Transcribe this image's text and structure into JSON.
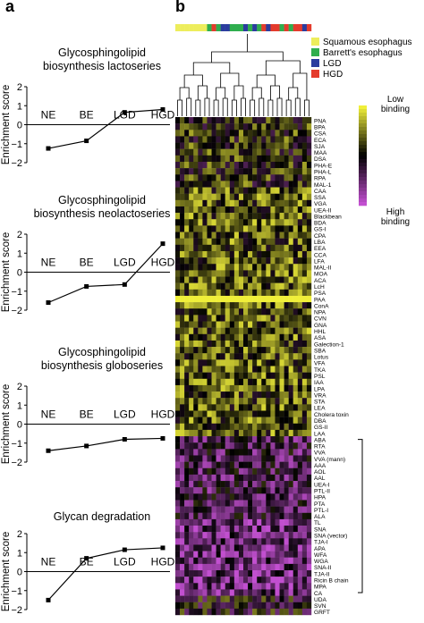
{
  "panel_a_label": "a",
  "panel_b_label": "b",
  "chart_data": [
    {
      "type": "line",
      "title": "Glycosphingolipid biosynthesis lactoseries",
      "title_lines": [
        "Glycosphingolipid",
        "biosynthesis lactoseries"
      ],
      "categories": [
        "NE",
        "BE",
        "LGD",
        "HGD"
      ],
      "values": [
        -1.25,
        -0.85,
        0.65,
        0.8
      ],
      "ylabel": "Enrichment score",
      "ylim": [
        -2,
        2
      ],
      "yticks": [
        "2",
        "1",
        "0",
        "−1",
        "−2"
      ]
    },
    {
      "type": "line",
      "title": "Glycosphingolipid biosynthesis neolactoseries",
      "title_lines": [
        "Glycosphingolipid",
        "biosynthesis neolactoseries"
      ],
      "categories": [
        "NE",
        "BE",
        "LGD",
        "HGD"
      ],
      "values": [
        -1.6,
        -0.75,
        -0.65,
        1.5
      ],
      "ylabel": "Enrichment score",
      "ylim": [
        -2,
        2
      ],
      "yticks": [
        "2",
        "1",
        "0",
        "−1",
        "−2"
      ]
    },
    {
      "type": "line",
      "title": "Glycosphingolipid biosynthesis globoseries",
      "title_lines": [
        "Glycosphingolipid",
        "biosynthesis globoseries"
      ],
      "categories": [
        "NE",
        "BE",
        "LGD",
        "HGD"
      ],
      "values": [
        -1.4,
        -1.15,
        -0.8,
        -0.75
      ],
      "ylabel": "Enrichment score",
      "ylim": [
        -2,
        2
      ],
      "yticks": [
        "2",
        "1",
        "0",
        "−1",
        "−2"
      ]
    },
    {
      "type": "line",
      "title": "Glycan degradation",
      "title_lines": [
        "Glycan degradation"
      ],
      "categories": [
        "NE",
        "BE",
        "LGD",
        "HGD"
      ],
      "values": [
        -1.5,
        0.7,
        1.15,
        1.25
      ],
      "ylabel": "Enrichment score",
      "ylim": [
        -2,
        2
      ],
      "yticks": [
        "2",
        "1",
        "0",
        "−1",
        "−2"
      ]
    },
    {
      "type": "heatmap",
      "legend": [
        {
          "label": "Squamous esophagus",
          "color": "#eded5c"
        },
        {
          "label": "Barrett's esophagus",
          "color": "#2fae4e"
        },
        {
          "label": "LGD",
          "color": "#2b3c9e"
        },
        {
          "label": "HGD",
          "color": "#e43b2c"
        }
      ],
      "scale_low": [
        "Low",
        "binding"
      ],
      "scale_high": [
        "High",
        "binding"
      ],
      "sample_groups": [
        0,
        0,
        0,
        0,
        0,
        0,
        0,
        1,
        3,
        1,
        2,
        2,
        1,
        1,
        1,
        2,
        1,
        2,
        1,
        3,
        2,
        3,
        3,
        1,
        3,
        1,
        3,
        3,
        2,
        3
      ],
      "rows": [
        "PNA",
        "BPA",
        "CSA",
        "ECA",
        "SJA",
        "MAA",
        "DSA",
        "PHA-E",
        "PHA-L",
        "RPA",
        "MAL-1",
        "CAA",
        "SSA",
        "VGA",
        "UEA-II",
        "Blackbean",
        "BDA",
        "GS-I",
        "CPA",
        "LBA",
        "EEA",
        "CCA",
        "LFA",
        "MAL-II",
        "MOA",
        "ACA",
        "LcH",
        "PSA",
        "PAA",
        "ConA",
        "NPA",
        "CVN",
        "GNA",
        "HHL",
        "ASA",
        "Galection-1",
        "SBA",
        "Lotus",
        "VFA",
        "TKA",
        "PSL",
        "IAA",
        "LPA",
        "VRA",
        "STA",
        "LEA",
        "Cholera toxin",
        "DBA",
        "GS-II",
        "LAA",
        "ABA",
        "RTA",
        "VVA",
        "VVA (mann)",
        "AAA",
        "AOL",
        "AAL",
        "UEA-I",
        "PTL-II",
        "HPA",
        "PTA",
        "PTL-I",
        "ALA",
        "TL",
        "SNA",
        "SNA (vector)",
        "TJA-I",
        "APA",
        "WFA",
        "WGA",
        "SNA-II",
        "TJA-II",
        "Ricin B chain",
        "MPA",
        "CA",
        "UDA",
        "SVN",
        "GRFT"
      ]
    }
  ],
  "colors": {
    "low": "#f0ef3a",
    "mid": "#000000",
    "high": "#c24fd0",
    "line": "#000000"
  }
}
